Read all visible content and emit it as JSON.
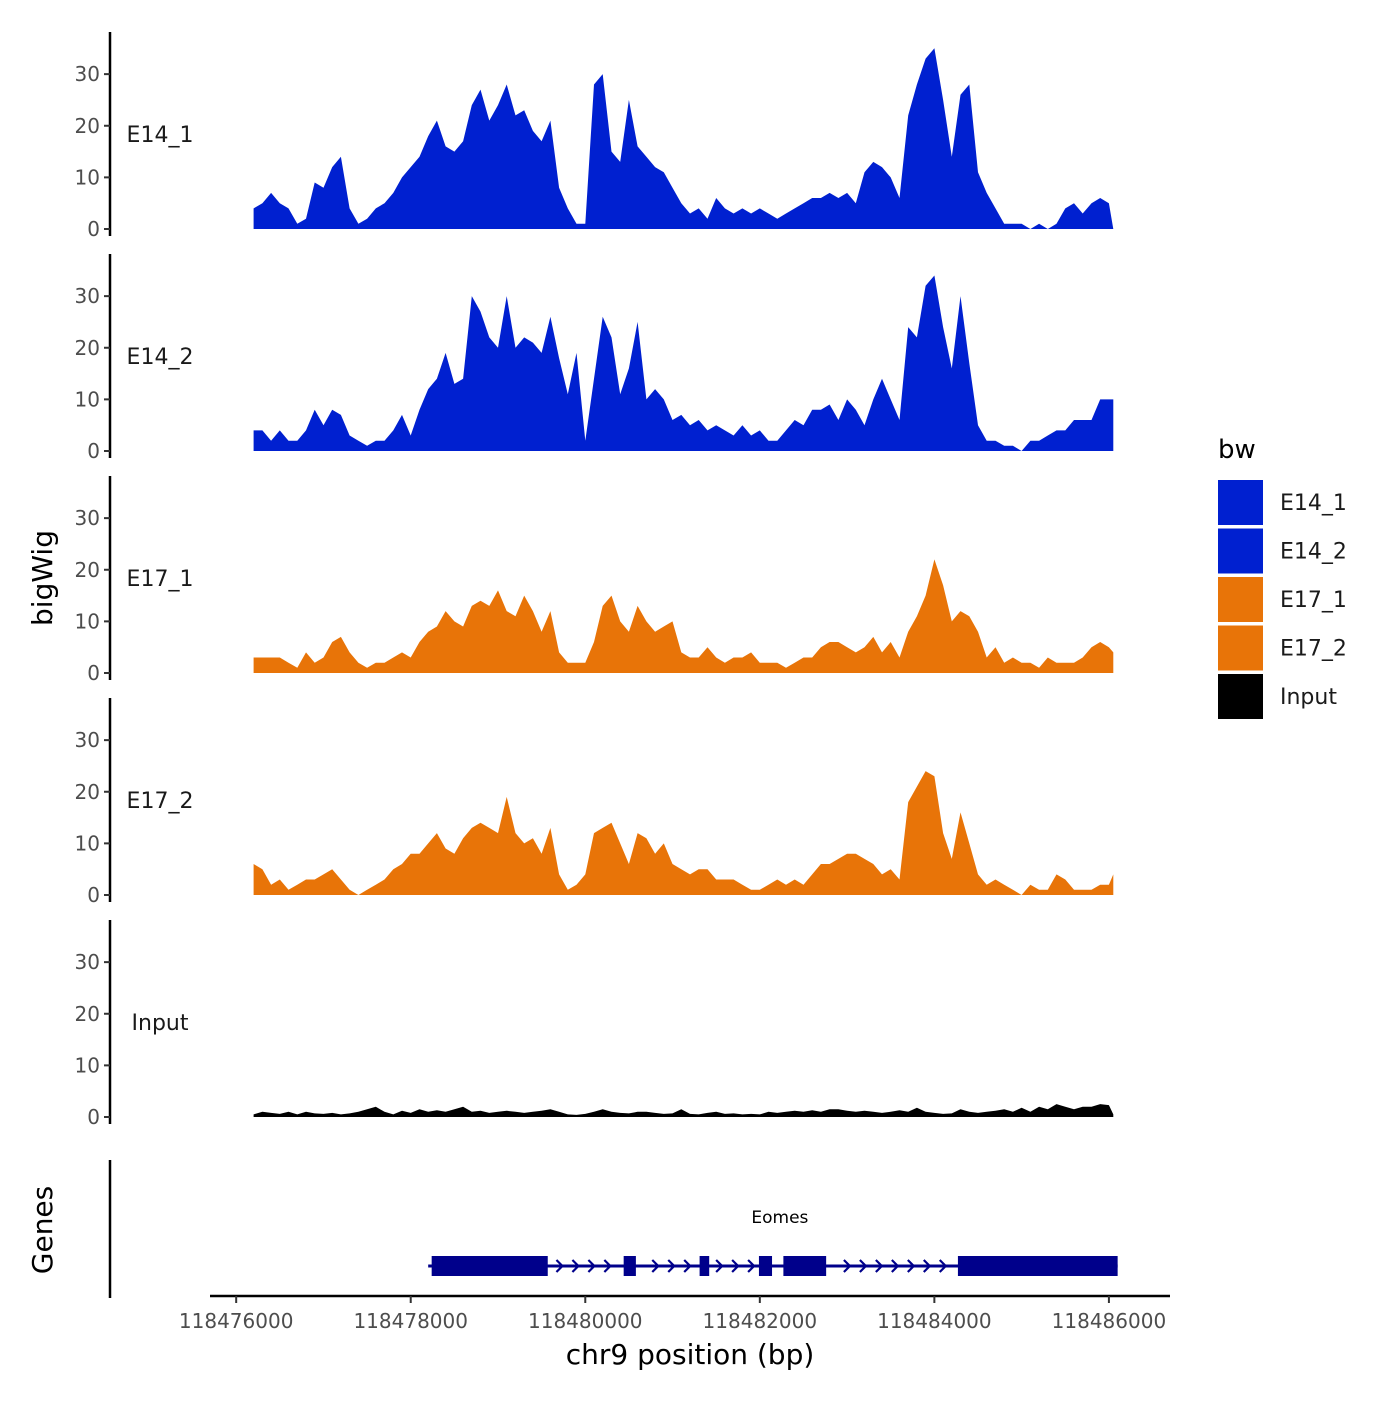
{
  "chart_data": {
    "type": "area",
    "xlabel": "chr9 position (bp)",
    "ylabel": "bigWig",
    "gene_track_label": "Genes",
    "xlim": [
      118475700,
      118486700
    ],
    "x_ticks": [
      118476000,
      118478000,
      118480000,
      118482000,
      118484000,
      118486000
    ],
    "x_tick_labels": [
      "118476000",
      "118478000",
      "118480000",
      "118482000",
      "118484000",
      "118486000"
    ],
    "ylim": [
      0,
      37
    ],
    "y_ticks": [
      0,
      10,
      20,
      30
    ],
    "y_tick_labels": [
      "0",
      "10",
      "20",
      "30"
    ],
    "legend": {
      "title": "bw",
      "position": "right",
      "entries": [
        {
          "label": "E14_1",
          "color": "#0020d0"
        },
        {
          "label": "E14_2",
          "color": "#0020d0"
        },
        {
          "label": "E17_1",
          "color": "#e87408"
        },
        {
          "label": "E17_2",
          "color": "#e87408"
        },
        {
          "label": "Input",
          "color": "#000000"
        }
      ]
    },
    "series": [
      {
        "name": "E14_1",
        "label": "E14_1",
        "color": "#0020d0",
        "x": [
          118476200,
          118476300,
          118476400,
          118476500,
          118476600,
          118476700,
          118476800,
          118476900,
          118477000,
          118477100,
          118477200,
          118477300,
          118477400,
          118477500,
          118477600,
          118477700,
          118477800,
          118477900,
          118478000,
          118478100,
          118478200,
          118478300,
          118478400,
          118478500,
          118478600,
          118478700,
          118478800,
          118478900,
          118479000,
          118479100,
          118479200,
          118479300,
          118479400,
          118479500,
          118479600,
          118479700,
          118479800,
          118479900,
          118480000,
          118480100,
          118480200,
          118480300,
          118480400,
          118480500,
          118480600,
          118480700,
          118480800,
          118480900,
          118481000,
          118481100,
          118481200,
          118481300,
          118481400,
          118481500,
          118481600,
          118481700,
          118481800,
          118481900,
          118482000,
          118482100,
          118482200,
          118482300,
          118482400,
          118482500,
          118482600,
          118482700,
          118482800,
          118482900,
          118483000,
          118483100,
          118483200,
          118483300,
          118483400,
          118483500,
          118483600,
          118483700,
          118483800,
          118483900,
          118484000,
          118484100,
          118484200,
          118484300,
          118484400,
          118484500,
          118484600,
          118484700,
          118484800,
          118484900,
          118485000,
          118485100,
          118485200,
          118485300,
          118485400,
          118485500,
          118485600,
          118485700,
          118485800,
          118485900,
          118486000,
          118486050
        ],
        "values": [
          4,
          5,
          7,
          5,
          4,
          1,
          2,
          9,
          8,
          12,
          14,
          4,
          1,
          2,
          4,
          5,
          7,
          10,
          12,
          14,
          18,
          21,
          16,
          15,
          17,
          24,
          27,
          21,
          24,
          28,
          22,
          23,
          19,
          17,
          21,
          8,
          4,
          1,
          1,
          28,
          30,
          15,
          13,
          25,
          16,
          14,
          12,
          11,
          8,
          5,
          3,
          4,
          2,
          6,
          4,
          3,
          4,
          3,
          4,
          3,
          2,
          3,
          4,
          5,
          6,
          6,
          7,
          6,
          7,
          5,
          11,
          13,
          12,
          10,
          6,
          22,
          28,
          33,
          35,
          25,
          14,
          26,
          28,
          11,
          7,
          4,
          1,
          1,
          1,
          0,
          1,
          0,
          1,
          4,
          5,
          3,
          5,
          6,
          5,
          0
        ]
      },
      {
        "name": "E14_2",
        "label": "E14_2",
        "color": "#0020d0",
        "x": [
          118476200,
          118476300,
          118476400,
          118476500,
          118476600,
          118476700,
          118476800,
          118476900,
          118477000,
          118477100,
          118477200,
          118477300,
          118477400,
          118477500,
          118477600,
          118477700,
          118477800,
          118477900,
          118478000,
          118478100,
          118478200,
          118478300,
          118478400,
          118478500,
          118478600,
          118478700,
          118478800,
          118478900,
          118479000,
          118479100,
          118479200,
          118479300,
          118479400,
          118479500,
          118479600,
          118479700,
          118479800,
          118479900,
          118480000,
          118480100,
          118480200,
          118480300,
          118480400,
          118480500,
          118480600,
          118480700,
          118480800,
          118480900,
          118481000,
          118481100,
          118481200,
          118481300,
          118481400,
          118481500,
          118481600,
          118481700,
          118481800,
          118481900,
          118482000,
          118482100,
          118482200,
          118482300,
          118482400,
          118482500,
          118482600,
          118482700,
          118482800,
          118482900,
          118483000,
          118483100,
          118483200,
          118483300,
          118483400,
          118483500,
          118483600,
          118483700,
          118483800,
          118483900,
          118484000,
          118484100,
          118484200,
          118484300,
          118484400,
          118484500,
          118484600,
          118484700,
          118484800,
          118484900,
          118485000,
          118485100,
          118485200,
          118485300,
          118485400,
          118485500,
          118485600,
          118485700,
          118485800,
          118485900,
          118486000,
          118486050
        ],
        "values": [
          4,
          4,
          2,
          4,
          2,
          2,
          4,
          8,
          5,
          8,
          7,
          3,
          2,
          1,
          2,
          2,
          4,
          7,
          3,
          8,
          12,
          14,
          19,
          13,
          14,
          30,
          27,
          22,
          20,
          30,
          20,
          22,
          21,
          19,
          26,
          18,
          11,
          19,
          2,
          14,
          26,
          22,
          11,
          16,
          25,
          10,
          12,
          10,
          6,
          7,
          5,
          6,
          4,
          5,
          4,
          3,
          5,
          3,
          4,
          2,
          2,
          4,
          6,
          5,
          8,
          8,
          9,
          6,
          10,
          8,
          5,
          10,
          14,
          10,
          6,
          24,
          22,
          32,
          34,
          24,
          16,
          30,
          17,
          5,
          2,
          2,
          1,
          1,
          0,
          2,
          2,
          3,
          4,
          4,
          6,
          6,
          6,
          10,
          10,
          10
        ]
      },
      {
        "name": "E17_1",
        "label": "E17_1",
        "color": "#e87408",
        "x": [
          118476200,
          118476300,
          118476400,
          118476500,
          118476600,
          118476700,
          118476800,
          118476900,
          118477000,
          118477100,
          118477200,
          118477300,
          118477400,
          118477500,
          118477600,
          118477700,
          118477800,
          118477900,
          118478000,
          118478100,
          118478200,
          118478300,
          118478400,
          118478500,
          118478600,
          118478700,
          118478800,
          118478900,
          118479000,
          118479100,
          118479200,
          118479300,
          118479400,
          118479500,
          118479600,
          118479700,
          118479800,
          118479900,
          118480000,
          118480100,
          118480200,
          118480300,
          118480400,
          118480500,
          118480600,
          118480700,
          118480800,
          118480900,
          118481000,
          118481100,
          118481200,
          118481300,
          118481400,
          118481500,
          118481600,
          118481700,
          118481800,
          118481900,
          118482000,
          118482100,
          118482200,
          118482300,
          118482400,
          118482500,
          118482600,
          118482700,
          118482800,
          118482900,
          118483000,
          118483100,
          118483200,
          118483300,
          118483400,
          118483500,
          118483600,
          118483700,
          118483800,
          118483900,
          118484000,
          118484100,
          118484200,
          118484300,
          118484400,
          118484500,
          118484600,
          118484700,
          118484800,
          118484900,
          118485000,
          118485100,
          118485200,
          118485300,
          118485400,
          118485500,
          118485600,
          118485700,
          118485800,
          118485900,
          118486000,
          118486050
        ],
        "values": [
          3,
          3,
          3,
          3,
          2,
          1,
          4,
          2,
          3,
          6,
          7,
          4,
          2,
          1,
          2,
          2,
          3,
          4,
          3,
          6,
          8,
          9,
          12,
          10,
          9,
          13,
          14,
          13,
          16,
          12,
          11,
          15,
          12,
          8,
          12,
          4,
          2,
          2,
          2,
          6,
          13,
          15,
          10,
          8,
          13,
          10,
          8,
          9,
          10,
          4,
          3,
          3,
          5,
          3,
          2,
          3,
          3,
          4,
          2,
          2,
          2,
          1,
          2,
          3,
          3,
          5,
          6,
          6,
          5,
          4,
          5,
          7,
          4,
          6,
          3,
          8,
          11,
          15,
          22,
          17,
          10,
          12,
          11,
          8,
          3,
          5,
          2,
          3,
          2,
          2,
          1,
          3,
          2,
          2,
          2,
          3,
          5,
          6,
          5,
          4
        ]
      },
      {
        "name": "E17_2",
        "label": "E17_2",
        "color": "#e87408",
        "x": [
          118476200,
          118476300,
          118476400,
          118476500,
          118476600,
          118476700,
          118476800,
          118476900,
          118477000,
          118477100,
          118477200,
          118477300,
          118477400,
          118477500,
          118477600,
          118477700,
          118477800,
          118477900,
          118478000,
          118478100,
          118478200,
          118478300,
          118478400,
          118478500,
          118478600,
          118478700,
          118478800,
          118478900,
          118479000,
          118479100,
          118479200,
          118479300,
          118479400,
          118479500,
          118479600,
          118479700,
          118479800,
          118479900,
          118480000,
          118480100,
          118480200,
          118480300,
          118480400,
          118480500,
          118480600,
          118480700,
          118480800,
          118480900,
          118481000,
          118481100,
          118481200,
          118481300,
          118481400,
          118481500,
          118481600,
          118481700,
          118481800,
          118481900,
          118482000,
          118482100,
          118482200,
          118482300,
          118482400,
          118482500,
          118482600,
          118482700,
          118482800,
          118482900,
          118483000,
          118483100,
          118483200,
          118483300,
          118483400,
          118483500,
          118483600,
          118483700,
          118483800,
          118483900,
          118484000,
          118484100,
          118484200,
          118484300,
          118484400,
          118484500,
          118484600,
          118484700,
          118484800,
          118484900,
          118485000,
          118485100,
          118485200,
          118485300,
          118485400,
          118485500,
          118485600,
          118485700,
          118485800,
          118485900,
          118486000,
          118486050
        ],
        "values": [
          6,
          5,
          2,
          3,
          1,
          2,
          3,
          3,
          4,
          5,
          3,
          1,
          0,
          1,
          2,
          3,
          5,
          6,
          8,
          8,
          10,
          12,
          9,
          8,
          11,
          13,
          14,
          13,
          12,
          19,
          12,
          10,
          11,
          8,
          13,
          4,
          1,
          2,
          4,
          12,
          13,
          14,
          10,
          6,
          12,
          11,
          8,
          10,
          6,
          5,
          4,
          5,
          5,
          3,
          3,
          3,
          2,
          1,
          1,
          2,
          3,
          2,
          3,
          2,
          4,
          6,
          6,
          7,
          8,
          8,
          7,
          6,
          4,
          5,
          3,
          18,
          21,
          24,
          23,
          12,
          7,
          16,
          10,
          4,
          2,
          3,
          2,
          1,
          0,
          2,
          1,
          1,
          4,
          3,
          1,
          1,
          1,
          2,
          2,
          4
        ]
      },
      {
        "name": "Input",
        "label": "Input",
        "color": "#000000",
        "x": [
          118476200,
          118476300,
          118476400,
          118476500,
          118476600,
          118476700,
          118476800,
          118476900,
          118477000,
          118477100,
          118477200,
          118477300,
          118477400,
          118477500,
          118477600,
          118477700,
          118477800,
          118477900,
          118478000,
          118478100,
          118478200,
          118478300,
          118478400,
          118478500,
          118478600,
          118478700,
          118478800,
          118478900,
          118479000,
          118479100,
          118479200,
          118479300,
          118479400,
          118479500,
          118479600,
          118479700,
          118479800,
          118479900,
          118480000,
          118480100,
          118480200,
          118480300,
          118480400,
          118480500,
          118480600,
          118480700,
          118480800,
          118480900,
          118481000,
          118481100,
          118481200,
          118481300,
          118481400,
          118481500,
          118481600,
          118481700,
          118481800,
          118481900,
          118482000,
          118482100,
          118482200,
          118482300,
          118482400,
          118482500,
          118482600,
          118482700,
          118482800,
          118482900,
          118483000,
          118483100,
          118483200,
          118483300,
          118483400,
          118483500,
          118483600,
          118483700,
          118483800,
          118483900,
          118484000,
          118484100,
          118484200,
          118484300,
          118484400,
          118484500,
          118484600,
          118484700,
          118484800,
          118484900,
          118485000,
          118485100,
          118485200,
          118485300,
          118485400,
          118485500,
          118485600,
          118485700,
          118485800,
          118485900,
          118486000,
          118486050
        ],
        "values": [
          0.5,
          1,
          0.8,
          0.6,
          1,
          0.5,
          1,
          0.7,
          0.6,
          0.8,
          0.5,
          0.7,
          1,
          1.5,
          2,
          1,
          0.5,
          1.2,
          0.8,
          1.5,
          1,
          1.3,
          1,
          1.5,
          2,
          1,
          1.2,
          0.8,
          1,
          1.2,
          1,
          0.8,
          1,
          1.2,
          1.5,
          1,
          0.5,
          0.4,
          0.6,
          1,
          1.5,
          1,
          0.8,
          0.7,
          1,
          1,
          0.8,
          0.6,
          0.7,
          1.5,
          0.6,
          0.5,
          0.8,
          1,
          0.6,
          0.7,
          0.5,
          0.6,
          0.5,
          1,
          0.8,
          1,
          1.2,
          1,
          1.3,
          1,
          1.5,
          1.5,
          1.2,
          1,
          1.2,
          1,
          0.8,
          1,
          1.3,
          1,
          1.8,
          1,
          0.8,
          0.6,
          0.7,
          1.5,
          1,
          0.8,
          1,
          1.2,
          1.5,
          1,
          1.8,
          1,
          2,
          1.5,
          2.5,
          2,
          1.5,
          2,
          2,
          2.5,
          2.3,
          0.5
        ]
      }
    ],
    "genes": [
      {
        "name": "Eomes",
        "strand": "+",
        "start": 118478200,
        "end": 118486100,
        "exons": [
          [
            118478240,
            118479570
          ],
          [
            118480440,
            118480580
          ],
          [
            118481310,
            118481420
          ],
          [
            118481990,
            118482140
          ],
          [
            118482270,
            118482760
          ],
          [
            118484270,
            118486100
          ]
        ]
      }
    ]
  }
}
